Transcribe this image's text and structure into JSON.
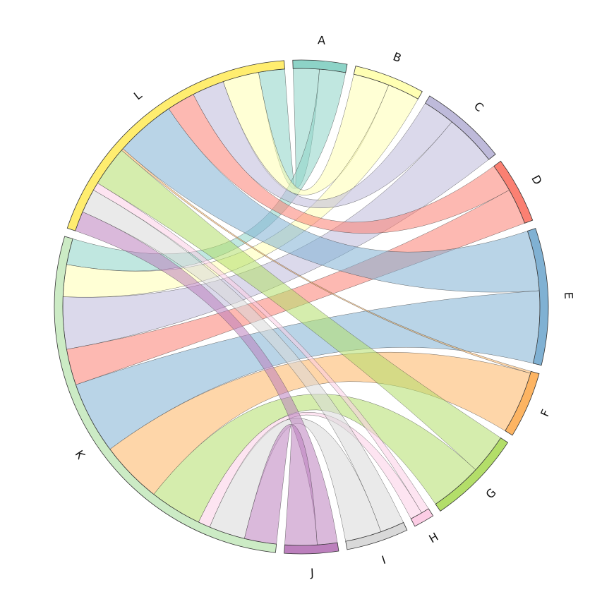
{
  "chart_data": {
    "type": "chord",
    "categories": [
      "A",
      "B",
      "C",
      "D",
      "E",
      "F",
      "G",
      "H",
      "I",
      "J",
      "K",
      "L"
    ],
    "colors": [
      "#8dd3c7",
      "#ffffb3",
      "#bebada",
      "#fb8072",
      "#80b1d3",
      "#fdb462",
      "#b3de69",
      "#fccde5",
      "#d9d9d9",
      "#bc80bd",
      "#ccebc5",
      "#ffed6f"
    ],
    "flows": [
      {
        "from": "A",
        "to": "L",
        "value": 6.5
      },
      {
        "from": "A",
        "to": "K",
        "value": 6.5
      },
      {
        "from": "B",
        "to": "L",
        "value": 9
      },
      {
        "from": "B",
        "to": "K",
        "value": 8
      },
      {
        "from": "C",
        "to": "L",
        "value": 8
      },
      {
        "from": "C",
        "to": "K",
        "value": 13
      },
      {
        "from": "D",
        "to": "L",
        "value": 7
      },
      {
        "from": "D",
        "to": "K",
        "value": 9
      },
      {
        "from": "E",
        "to": "L",
        "value": 15
      },
      {
        "from": "E",
        "to": "K",
        "value": 18
      },
      {
        "from": "F",
        "to": "L",
        "value": 0.5
      },
      {
        "from": "F",
        "to": "K",
        "value": 15.5
      },
      {
        "from": "G",
        "to": "L",
        "value": 10
      },
      {
        "from": "G",
        "to": "K",
        "value": 13
      },
      {
        "from": "H",
        "to": "L",
        "value": 2
      },
      {
        "from": "H",
        "to": "K",
        "value": 3
      },
      {
        "from": "I",
        "to": "L",
        "value": 6
      },
      {
        "from": "I",
        "to": "K",
        "value": 9
      },
      {
        "from": "J",
        "to": "L",
        "value": 5
      },
      {
        "from": "J",
        "to": "K",
        "value": 8
      }
    ]
  }
}
